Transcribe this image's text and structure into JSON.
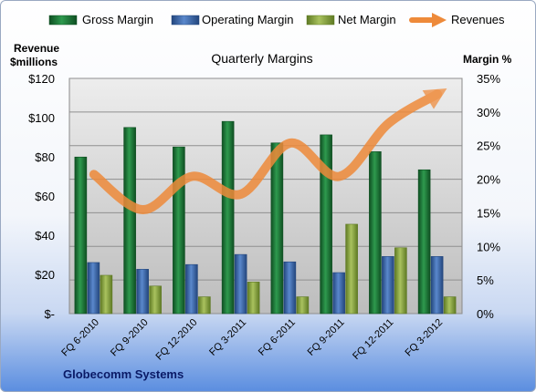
{
  "chart_data": {
    "type": "bar",
    "title": "Quarterly Margins",
    "company": "Globecomm Systems",
    "left_axis_label": [
      "Revenue",
      "$millions"
    ],
    "right_axis_label": "Margin %",
    "categories": [
      "FQ 6-2010",
      "FQ 9-2010",
      "FQ 12-2010",
      "FQ 3-2011",
      "FQ 6-2011",
      "FQ 9-2011",
      "FQ 12-2011",
      "FQ 3-2012"
    ],
    "left_ticks": [
      "$-",
      "$20",
      "$40",
      "$60",
      "$80",
      "$100",
      "$120"
    ],
    "right_ticks": [
      "0%",
      "5%",
      "10%",
      "15%",
      "20%",
      "25%",
      "30%",
      "35%"
    ],
    "ylim_left": [
      0,
      120
    ],
    "ylim_right": [
      0,
      35
    ],
    "grid": true,
    "legend_position": "top",
    "series": [
      {
        "name": "Gross Margin",
        "axis": "right",
        "kind": "bar",
        "color": "#1e7a3c",
        "values": [
          23.3,
          27.7,
          24.8,
          28.6,
          25.4,
          26.6,
          24.1,
          21.4
        ]
      },
      {
        "name": "Operating Margin",
        "axis": "right",
        "kind": "bar",
        "color": "#3f6fb5",
        "values": [
          7.6,
          6.6,
          7.3,
          8.8,
          7.7,
          6.1,
          8.5,
          8.5
        ]
      },
      {
        "name": "Net Margin",
        "axis": "right",
        "kind": "bar",
        "color": "#8ea94a",
        "values": [
          5.7,
          4.1,
          2.5,
          4.7,
          2.5,
          13.3,
          9.8,
          2.5
        ]
      },
      {
        "name": "Revenues",
        "axis": "left",
        "kind": "line",
        "color": "#ee8a3a",
        "values": [
          71,
          53,
          70,
          61,
          87,
          70,
          97,
          112
        ]
      }
    ]
  }
}
